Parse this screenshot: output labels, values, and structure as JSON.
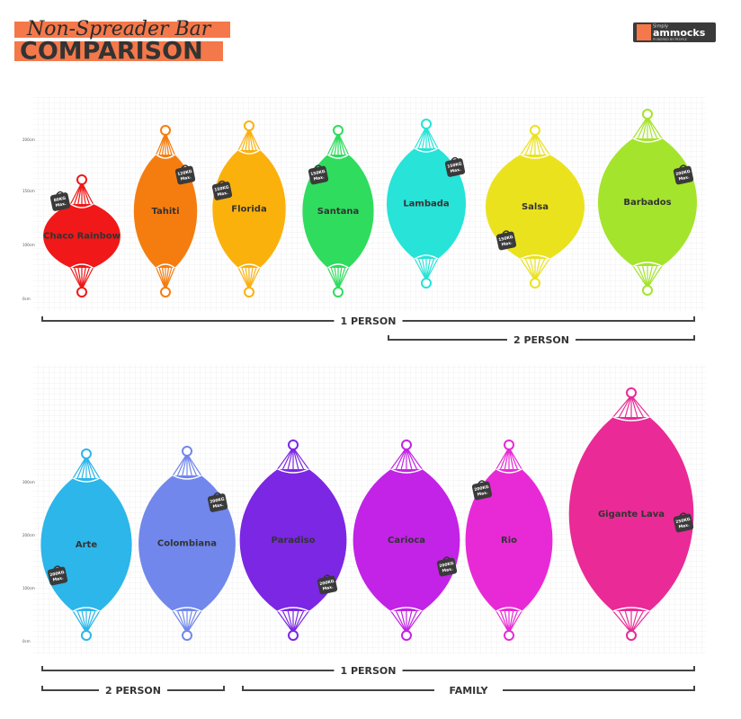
{
  "header": {
    "title": "Non-Spreader Bar",
    "subtitle": "COMPARISON"
  },
  "logo": {
    "small": "Simply",
    "brand": "ammocks",
    "tagline": "POWERED BY PEOPLE"
  },
  "panels": [
    {
      "axis_labels": [
        "200cm",
        "150cm",
        "100cm",
        "0cm"
      ],
      "hammocks": [
        {
          "name": "Chaco Rainbow",
          "color": "#f01818",
          "tag": [
            "80KG",
            "Max."
          ]
        },
        {
          "name": "Tahiti",
          "color": "#f57d0f",
          "tag": [
            "120KG",
            "Max."
          ]
        },
        {
          "name": "Florida",
          "color": "#fbb10c",
          "tag": [
            "150KG",
            "Max."
          ]
        },
        {
          "name": "Santana",
          "color": "#2fdc5e",
          "tag": [
            "150KG",
            "Max."
          ]
        },
        {
          "name": "Lambada",
          "color": "#27e3d8",
          "tag": [
            "150KG",
            "Max."
          ]
        },
        {
          "name": "Salsa",
          "color": "#ebe21e",
          "tag": [
            "150KG",
            "Max."
          ]
        },
        {
          "name": "Barbados",
          "color": "#a4e42c",
          "tag": [
            "200KG",
            "Max."
          ]
        }
      ],
      "groups": [
        {
          "label": "1 PERSON"
        },
        {
          "label": "2 PERSON"
        }
      ]
    },
    {
      "axis_labels": [
        "300cm",
        "200cm",
        "100cm",
        "0cm"
      ],
      "hammocks": [
        {
          "name": "Arte",
          "color": "#2cb6ea",
          "tag": [
            "200KG",
            "Max."
          ]
        },
        {
          "name": "Colombiana",
          "color": "#7187ec",
          "tag": [
            "200KG",
            "Max."
          ]
        },
        {
          "name": "Paradiso",
          "color": "#7c27e4",
          "tag": [
            "200KG",
            "Max."
          ]
        },
        {
          "name": "Carioca",
          "color": "#c223e6",
          "tag": [
            "200KG",
            "Max."
          ]
        },
        {
          "name": "Rio",
          "color": "#e82ad6",
          "tag": [
            "200KG",
            "Max."
          ]
        },
        {
          "name": "Gigante Lava",
          "color": "#ea2a96",
          "tag": [
            "250KG",
            "Max."
          ]
        }
      ],
      "groups": [
        {
          "label": "1 PERSON"
        },
        {
          "label": "2 PERSON"
        },
        {
          "label": "FAMILY"
        }
      ]
    }
  ]
}
